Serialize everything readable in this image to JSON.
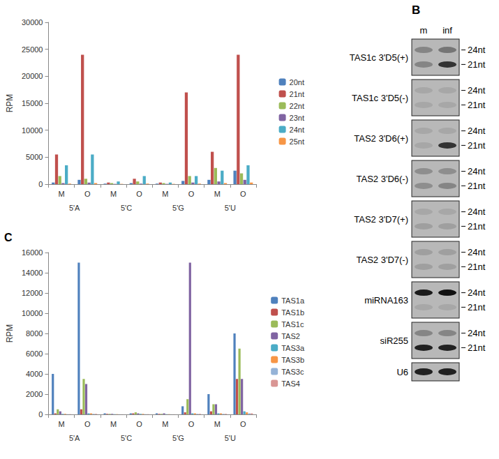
{
  "chart_data": [
    {
      "type": "bar",
      "y_label": "RPM",
      "categories": [
        "M",
        "O",
        "M",
        "O",
        "M",
        "O",
        "M",
        "O"
      ],
      "groups": [
        "5'A",
        "5'C",
        "5'G",
        "5'U"
      ],
      "series": [
        {
          "name": "20nt",
          "color": "#4f81bd",
          "values": [
            300,
            800,
            100,
            200,
            100,
            600,
            800,
            2500
          ]
        },
        {
          "name": "21nt",
          "color": "#c0504d",
          "values": [
            5500,
            24000,
            300,
            1000,
            300,
            17000,
            6000,
            24000
          ]
        },
        {
          "name": "22nt",
          "color": "#9bbb59",
          "values": [
            1500,
            1000,
            200,
            500,
            200,
            1500,
            3000,
            2000
          ]
        },
        {
          "name": "23nt",
          "color": "#8064a2",
          "values": [
            200,
            300,
            50,
            100,
            50,
            300,
            500,
            800
          ]
        },
        {
          "name": "24nt",
          "color": "#4bacc6",
          "values": [
            3500,
            5500,
            500,
            1500,
            300,
            1500,
            2500,
            3500
          ]
        },
        {
          "name": "25nt",
          "color": "#f79646",
          "values": [
            100,
            200,
            50,
            100,
            50,
            100,
            200,
            300
          ]
        }
      ],
      "ylim": [
        0,
        30000
      ],
      "yticks": [
        0,
        5000,
        10000,
        15000,
        20000,
        25000,
        30000
      ],
      "grid": false,
      "legend": "right"
    },
    {
      "type": "bar",
      "label": "C",
      "y_label": "RPM",
      "categories": [
        "M",
        "O",
        "M",
        "O",
        "M",
        "O",
        "M",
        "O"
      ],
      "groups": [
        "5'A",
        "5'C",
        "5'G",
        "5'U"
      ],
      "series": [
        {
          "name": "TAS1a",
          "color": "#4f81bd",
          "values": [
            4000,
            15000,
            100,
            100,
            100,
            800,
            2000,
            8000
          ]
        },
        {
          "name": "TAS1b",
          "color": "#c0504d",
          "values": [
            100,
            500,
            50,
            100,
            50,
            200,
            300,
            3500
          ]
        },
        {
          "name": "TAS1c",
          "color": "#9bbb59",
          "values": [
            500,
            3500,
            50,
            200,
            50,
            1500,
            1000,
            6500
          ]
        },
        {
          "name": "TAS2",
          "color": "#8064a2",
          "values": [
            300,
            3000,
            50,
            100,
            100,
            15000,
            1000,
            3500
          ]
        },
        {
          "name": "TAS3a",
          "color": "#4bacc6",
          "values": [
            50,
            100,
            20,
            50,
            20,
            100,
            100,
            300
          ]
        },
        {
          "name": "TAS3b",
          "color": "#f79646",
          "values": [
            50,
            100,
            20,
            50,
            20,
            100,
            100,
            200
          ]
        },
        {
          "name": "TAS3c",
          "color": "#95b3d7",
          "values": [
            20,
            50,
            10,
            20,
            10,
            50,
            50,
            100
          ]
        },
        {
          "name": "TAS4",
          "color": "#d99694",
          "values": [
            20,
            50,
            10,
            20,
            10,
            50,
            50,
            100
          ]
        }
      ],
      "ylim": [
        0,
        16000
      ],
      "yticks": [
        0,
        2000,
        4000,
        6000,
        8000,
        10000,
        12000,
        14000,
        16000
      ],
      "grid": false,
      "legend": "right"
    }
  ],
  "blot": {
    "label": "B",
    "lanes": [
      "m",
      "inf"
    ],
    "rows": [
      {
        "label": "TAS1c 3'D5(+)",
        "markers": [
          "24nt",
          "21nt"
        ],
        "m": [
          0.3,
          0.3
        ],
        "inf": [
          0.4,
          0.8
        ]
      },
      {
        "label": "TAS1c 3'D5(-)",
        "markers": [
          "24nt",
          "21nt"
        ],
        "m": [
          0.1,
          0.1
        ],
        "inf": [
          0.1,
          0.1
        ]
      },
      {
        "label": "TAS2 3'D6(+)",
        "markers": [
          "24nt",
          "21nt"
        ],
        "m": [
          0.1,
          0.1
        ],
        "inf": [
          0.1,
          0.8
        ]
      },
      {
        "label": "TAS2 3'D6(-)",
        "markers": [
          "24nt",
          "21nt"
        ],
        "m": [
          0.25,
          0.25
        ],
        "inf": [
          0.25,
          0.3
        ]
      },
      {
        "label": "TAS2 3'D7(+)",
        "markers": [
          "24nt",
          "21nt"
        ],
        "m": [
          0.1,
          0.15
        ],
        "inf": [
          0.1,
          0.15
        ]
      },
      {
        "label": "TAS2 3'D7(-)",
        "markers": [
          "24nt",
          "21nt"
        ],
        "m": [
          0.15,
          0.15
        ],
        "inf": [
          0.15,
          0.15
        ]
      },
      {
        "label": "miRNA163",
        "markers": [
          "24nt",
          "21nt"
        ],
        "m": [
          0.95,
          0.1
        ],
        "inf": [
          1.0,
          0.1
        ]
      },
      {
        "label": "siR255",
        "markers": [
          "24nt",
          "21nt"
        ],
        "m": [
          0.3,
          0.9
        ],
        "inf": [
          0.3,
          0.9
        ]
      },
      {
        "label": "U6",
        "markers": [],
        "m": [
          0.9
        ],
        "inf": [
          0.9
        ]
      }
    ]
  }
}
